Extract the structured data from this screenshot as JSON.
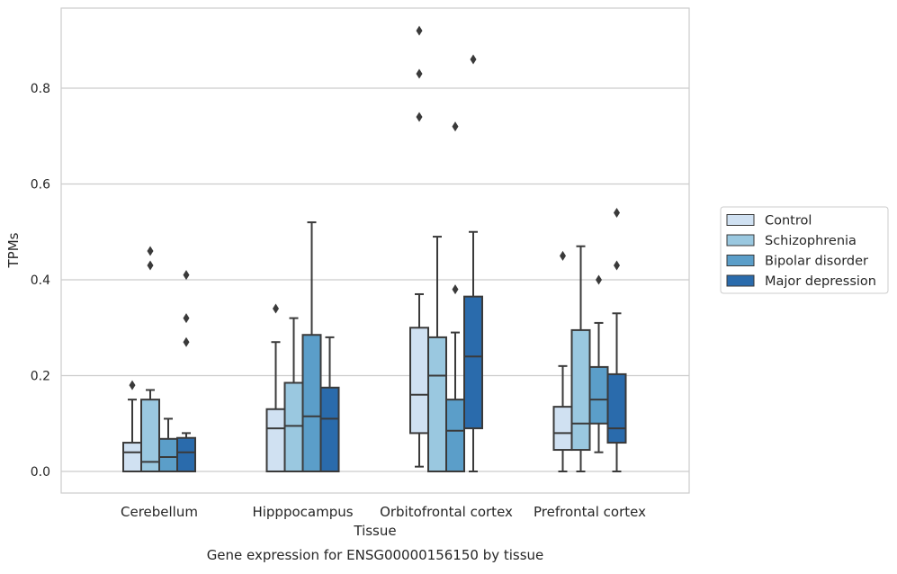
{
  "chart_data": {
    "type": "box",
    "xlabel": "Tissue",
    "ylabel": "TPMs",
    "caption": "Gene expression for ENSG00000156150 by tissue",
    "ylim": [
      -0.045,
      0.97
    ],
    "yticks": [
      0.0,
      0.2,
      0.4,
      0.6,
      0.8
    ],
    "ytick_labels": [
      "0.0",
      "0.2",
      "0.4",
      "0.6",
      "0.8"
    ],
    "grid": "horizontal",
    "legend_placement": "right",
    "categories": [
      "Cerebellum",
      "Hipppocampus",
      "Orbitofrontal cortex",
      "Prefrontal cortex"
    ],
    "series": [
      {
        "name": "Control",
        "color": "#d0e1f2",
        "boxes": [
          {
            "whislo": 0.0,
            "q1": 0.0,
            "med": 0.04,
            "q3": 0.06,
            "whishi": 0.15,
            "fliers": [
              0.18
            ]
          },
          {
            "whislo": 0.0,
            "q1": 0.0,
            "med": 0.09,
            "q3": 0.13,
            "whishi": 0.27,
            "fliers": [
              0.34
            ]
          },
          {
            "whislo": 0.01,
            "q1": 0.08,
            "med": 0.16,
            "q3": 0.3,
            "whishi": 0.37,
            "fliers": [
              0.74,
              0.83,
              0.92
            ]
          },
          {
            "whislo": 0.0,
            "q1": 0.045,
            "med": 0.08,
            "q3": 0.135,
            "whishi": 0.22,
            "fliers": [
              0.45
            ]
          }
        ]
      },
      {
        "name": "Schizophrenia",
        "color": "#9ac8e0",
        "boxes": [
          {
            "whislo": 0.0,
            "q1": 0.0,
            "med": 0.02,
            "q3": 0.15,
            "whishi": 0.17,
            "fliers": [
              0.43,
              0.46
            ]
          },
          {
            "whislo": 0.0,
            "q1": 0.0,
            "med": 0.095,
            "q3": 0.185,
            "whishi": 0.32,
            "fliers": []
          },
          {
            "whislo": 0.0,
            "q1": 0.0,
            "med": 0.2,
            "q3": 0.28,
            "whishi": 0.49,
            "fliers": []
          },
          {
            "whislo": 0.0,
            "q1": 0.045,
            "med": 0.1,
            "q3": 0.295,
            "whishi": 0.47,
            "fliers": []
          }
        ]
      },
      {
        "name": "Bipolar disorder",
        "color": "#5b9ec9",
        "boxes": [
          {
            "whislo": 0.0,
            "q1": 0.0,
            "med": 0.03,
            "q3": 0.068,
            "whishi": 0.11,
            "fliers": []
          },
          {
            "whislo": 0.0,
            "q1": 0.0,
            "med": 0.115,
            "q3": 0.285,
            "whishi": 0.52,
            "fliers": []
          },
          {
            "whislo": 0.0,
            "q1": 0.0,
            "med": 0.085,
            "q3": 0.15,
            "whishi": 0.29,
            "fliers": [
              0.38,
              0.72
            ]
          },
          {
            "whislo": 0.04,
            "q1": 0.1,
            "med": 0.15,
            "q3": 0.218,
            "whishi": 0.31,
            "fliers": [
              0.4
            ]
          }
        ]
      },
      {
        "name": "Major depression",
        "color": "#2a6bac",
        "boxes": [
          {
            "whislo": 0.0,
            "q1": 0.0,
            "med": 0.04,
            "q3": 0.07,
            "whishi": 0.08,
            "fliers": [
              0.27,
              0.32,
              0.41
            ]
          },
          {
            "whislo": 0.0,
            "q1": 0.0,
            "med": 0.11,
            "q3": 0.175,
            "whishi": 0.28,
            "fliers": []
          },
          {
            "whislo": 0.0,
            "q1": 0.09,
            "med": 0.24,
            "q3": 0.365,
            "whishi": 0.5,
            "fliers": [
              0.86
            ]
          },
          {
            "whislo": 0.0,
            "q1": 0.06,
            "med": 0.09,
            "q3": 0.203,
            "whishi": 0.33,
            "fliers": [
              0.43,
              0.54
            ]
          }
        ]
      }
    ]
  }
}
